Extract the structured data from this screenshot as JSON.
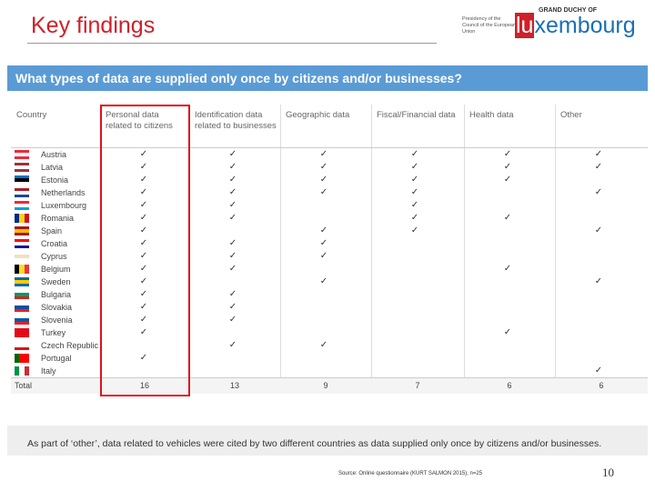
{
  "header": {
    "title": "Key findings",
    "logo": {
      "line1": "GRAND DUCHY OF",
      "line2": "Presidency of the Council of the European Union",
      "brand_prefix": "lu",
      "brand_rest": "xembourg"
    }
  },
  "question": "What types of data are supplied only once by citizens and/or businesses?",
  "table": {
    "columns": [
      "Country",
      "Personal data related to citizens",
      "Identification data related to businesses",
      "Geographic data",
      "Fiscal/Financial data",
      "Health data",
      "Other"
    ],
    "check_symbol": "✓",
    "rows": [
      {
        "country": "Austria",
        "supplied": [
          true,
          true,
          true,
          true,
          true,
          true
        ]
      },
      {
        "country": "Latvia",
        "supplied": [
          true,
          true,
          true,
          true,
          true,
          true
        ]
      },
      {
        "country": "Estonia",
        "supplied": [
          true,
          true,
          true,
          true,
          true,
          false
        ]
      },
      {
        "country": "Netherlands",
        "supplied": [
          true,
          true,
          true,
          true,
          false,
          true
        ]
      },
      {
        "country": "Luxembourg",
        "supplied": [
          true,
          true,
          false,
          true,
          false,
          false
        ]
      },
      {
        "country": "Romania",
        "supplied": [
          true,
          true,
          false,
          true,
          true,
          false
        ]
      },
      {
        "country": "Spain",
        "supplied": [
          true,
          false,
          true,
          true,
          false,
          true
        ]
      },
      {
        "country": "Croatia",
        "supplied": [
          true,
          true,
          true,
          false,
          false,
          false
        ]
      },
      {
        "country": "Cyprus",
        "supplied": [
          true,
          true,
          true,
          false,
          false,
          false
        ]
      },
      {
        "country": "Belgium",
        "supplied": [
          true,
          true,
          false,
          false,
          true,
          false
        ]
      },
      {
        "country": "Sweden",
        "supplied": [
          true,
          false,
          true,
          false,
          false,
          true
        ]
      },
      {
        "country": "Bulgaria",
        "supplied": [
          true,
          true,
          false,
          false,
          false,
          false
        ]
      },
      {
        "country": "Slovakia",
        "supplied": [
          true,
          true,
          false,
          false,
          false,
          false
        ]
      },
      {
        "country": "Slovenia",
        "supplied": [
          true,
          true,
          false,
          false,
          false,
          false
        ]
      },
      {
        "country": "Turkey",
        "supplied": [
          true,
          false,
          false,
          false,
          true,
          false
        ]
      },
      {
        "country": "Czech Republic",
        "supplied": [
          false,
          true,
          true,
          false,
          false,
          false
        ]
      },
      {
        "country": "Portugal",
        "supplied": [
          true,
          false,
          false,
          false,
          false,
          false
        ]
      },
      {
        "country": "Italy",
        "supplied": [
          false,
          false,
          false,
          false,
          false,
          true
        ]
      }
    ],
    "total_label": "Total",
    "totals": [
      16,
      13,
      9,
      7,
      6,
      6
    ]
  },
  "note": "As part of ‘other’,  data related to vehicles were cited by two different countries as data supplied  only once by citizens and/or businesses.",
  "source": "Source: Online questionnaire (KURT SALMON 2015), n=25",
  "page_number": 10
}
